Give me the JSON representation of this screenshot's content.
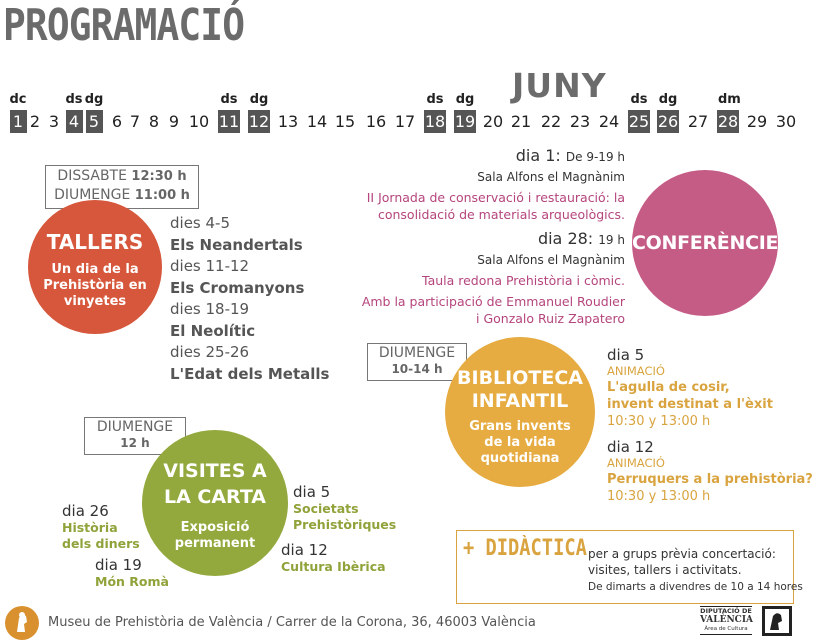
{
  "title": "PROGRAMACIÓ",
  "month": "JUNY",
  "calendar": {
    "weekday_labels": [
      {
        "label": "dc",
        "day": 1
      },
      {
        "label": "ds",
        "day": 4
      },
      {
        "label": "dg",
        "day": 5
      },
      {
        "label": "ds",
        "day": 11
      },
      {
        "label": "dg",
        "day": 12
      },
      {
        "label": "ds",
        "day": 18
      },
      {
        "label": "dg",
        "day": 19
      },
      {
        "label": "ds",
        "day": 25
      },
      {
        "label": "dg",
        "day": 26
      },
      {
        "label": "dm",
        "day": 28
      }
    ],
    "days": [
      "1",
      "2",
      "3",
      "4",
      "5",
      "6",
      "7",
      "8",
      "9",
      "10",
      "11",
      "12",
      "13",
      "14",
      "15",
      "16",
      "17",
      "18",
      "19",
      "20",
      "21",
      "22",
      "23",
      "24",
      "25",
      "26",
      "27",
      "28",
      "29",
      "30"
    ],
    "highlighted": [
      1,
      4,
      5,
      11,
      12,
      18,
      19,
      25,
      26,
      28
    ]
  },
  "tallers": {
    "schedule_line1": "DISSABTE",
    "schedule_time1": "12:30 h",
    "schedule_line2": "DIUMENGE",
    "schedule_time2": "11:00 h",
    "title": "TALLERS",
    "subtitle": [
      "Un dia de la",
      "Prehistòria en",
      "vinyetes"
    ],
    "color": "#d6573b",
    "items": [
      {
        "days": "dies 4-5",
        "name": "Els Neandertals"
      },
      {
        "days": "dies 11-12",
        "name": "Els Cromanyons"
      },
      {
        "days": "dies 18-19",
        "name": "El Neolític"
      },
      {
        "days": "dies 25-26",
        "name": "L'Edat dels Metalls"
      }
    ]
  },
  "conferencies": {
    "title": "CONFERÈNCIES",
    "color": "#c55c86",
    "event1": {
      "date": "dia 1:",
      "time": "De 9-19 h",
      "place": "Sala Alfons el Magnànim",
      "desc": [
        "II Jornada de conservació i restauració: la",
        "consolidació de materials arqueològics."
      ]
    },
    "event2": {
      "date": "dia 28:",
      "time": "19 h",
      "place": "Sala Alfons el Magnànim",
      "desc": [
        "Taula redona Prehistòria i còmic."
      ],
      "extra": [
        "Amb la participació de Emmanuel Roudier",
        "i Gonzalo Ruiz Zapatero"
      ]
    }
  },
  "biblioteca": {
    "schedule_line1": "DIUMENGE",
    "schedule_line2": "10-14 h",
    "title": [
      "BIBLIOTECA",
      "INFANTIL"
    ],
    "subtitle": [
      "Grans invents",
      "de la vida",
      "quotidiana"
    ],
    "color": "#e6ac42",
    "items": [
      {
        "day": "dia 5",
        "type": "ANIMACIÓ",
        "desc": [
          "L'agulla de cosir,",
          "invent destinat a l'èxit"
        ],
        "time": "10:30 y 13:00 h"
      },
      {
        "day": "dia 12",
        "type": "ANIMACIÓ",
        "desc": [
          "Perruquers a la prehistòria?"
        ],
        "time": "10:30 y 13:00 h"
      }
    ]
  },
  "visites": {
    "schedule_line1": "DIUMENGE",
    "schedule_line2": "12 h",
    "title": [
      "VISITES A",
      "LA CARTA"
    ],
    "subtitle": [
      "Exposició",
      "permanent"
    ],
    "color": "#93a93e",
    "items": [
      {
        "day": "dia 26",
        "desc": [
          "Història",
          "dels diners"
        ]
      },
      {
        "day": "dia 19",
        "desc": [
          "Món Romà"
        ]
      },
      {
        "day": "dia 5",
        "desc": [
          "Societats",
          "Prehistòriques"
        ]
      },
      {
        "day": "dia 12",
        "desc": [
          "Cultura Ibèrica"
        ]
      }
    ]
  },
  "didactica": {
    "label": "+ DIDÀCTICA",
    "lines": [
      "per a grups prèvia concertació:",
      "visites, tallers i activitats."
    ],
    "hours": "De dimarts a divendres de 10 a 14 hores"
  },
  "footer": {
    "text": "Museu de Prehistòria de València / Carrer de la Corona, 36, 46003 València",
    "logo1": [
      "DIPUTACIÓ DE",
      "VALÈNCIA",
      "Àrea de Cultura"
    ]
  }
}
